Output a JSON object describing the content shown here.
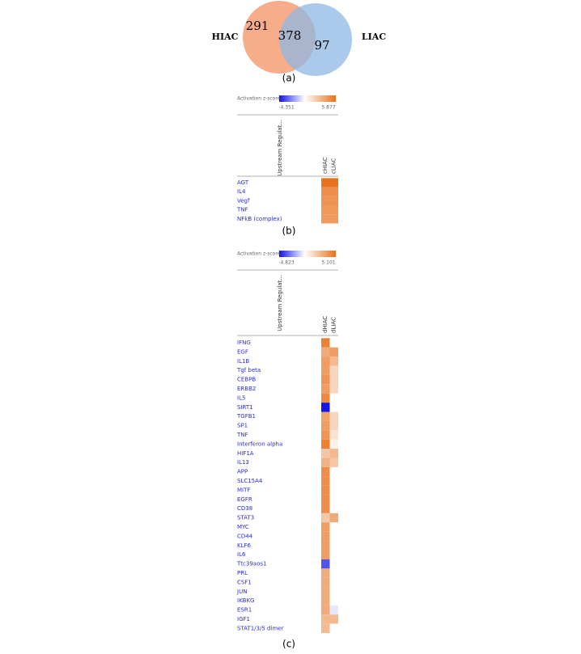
{
  "venn": {
    "left_label": "HIAC",
    "right_label": "LIAC",
    "left_only": 291,
    "both": 378,
    "right_only": 97,
    "caption": "(a)"
  },
  "heatmaps": [
    {
      "legend_title": "Activation z-score",
      "min": -4.351,
      "max": 5.877,
      "row_header": "Upstream Regulat...",
      "columns": [
        "cHIAC",
        "cLIAC"
      ],
      "rows": [
        "AGT",
        "IL4",
        "Vegf",
        "TNF",
        "NFkB (complex)"
      ],
      "values": [
        [
          5.8,
          5.8
        ],
        [
          4.6,
          4.6
        ],
        [
          4.4,
          4.4
        ],
        [
          4.2,
          4.2
        ],
        [
          4.1,
          4.1
        ]
      ],
      "caption": "(b)"
    },
    {
      "legend_title": "Activation z-score",
      "min": -4.823,
      "max": 5.101,
      "row_header": "Upstream Regulat...",
      "columns": [
        "dHIAC",
        "dLIAC"
      ],
      "rows": [
        "IFNG",
        "EGF",
        "IL1B",
        "Tgf beta",
        "CEBPB",
        "ERBB2",
        "IL5",
        "SIRT1",
        "TGFB1",
        "SP1",
        "TNF",
        "Interferon alpha",
        "HIF1A",
        "IL13",
        "APP",
        "SLC15A4",
        "MITF",
        "EGFR",
        "CD38",
        "STAT3",
        "MYC",
        "CD44",
        "KLF6",
        "IL6",
        "Ttc39aos1",
        "PRL",
        "CSF1",
        "JUN",
        "IKBKG",
        "ESR1",
        "IGF1",
        "STAT1/3/5 dimer"
      ],
      "values": [
        [
          4.5,
          0
        ],
        [
          3.0,
          3.5
        ],
        [
          3.5,
          2.5
        ],
        [
          3.5,
          1.5
        ],
        [
          3.8,
          1.5
        ],
        [
          3.5,
          1.5
        ],
        [
          4.2,
          0
        ],
        [
          -4.8,
          0
        ],
        [
          3.3,
          1.5
        ],
        [
          3.5,
          1.5
        ],
        [
          3.8,
          1
        ],
        [
          4.5,
          0.5
        ],
        [
          2.0,
          2.5
        ],
        [
          2.8,
          2
        ],
        [
          4.0,
          0
        ],
        [
          4.0,
          0
        ],
        [
          4.0,
          0
        ],
        [
          4.0,
          0
        ],
        [
          4.0,
          0
        ],
        [
          2.0,
          3
        ],
        [
          3.5,
          0
        ],
        [
          3.5,
          0
        ],
        [
          3.5,
          0
        ],
        [
          3.5,
          0
        ],
        [
          -3.5,
          0
        ],
        [
          3.0,
          0
        ],
        [
          3.0,
          0
        ],
        [
          3.0,
          0
        ],
        [
          3.0,
          0
        ],
        [
          3.0,
          -0.5
        ],
        [
          2.5,
          2.5
        ],
        [
          2.5,
          0
        ]
      ],
      "caption": "(c)"
    }
  ]
}
